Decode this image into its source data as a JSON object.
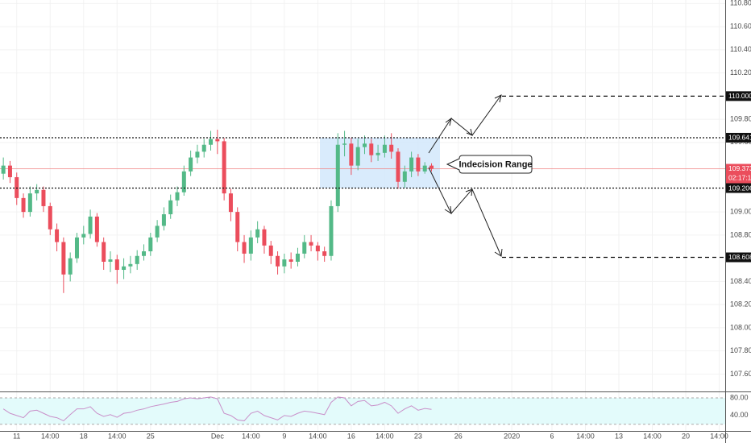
{
  "chart_data": {
    "type": "candlestick",
    "colors": {
      "up": "#53b987",
      "down": "#eb4d5c",
      "zone": "#cfe6fb",
      "last": "#f08080",
      "rsi": "#c98fc9",
      "rsi_band": "#e3fbfb"
    },
    "grid": true,
    "xlim": [
      -1.25,
      52.95
    ],
    "ylim": [
      107.45,
      110.83
    ],
    "x": [
      -1,
      -0.5,
      0,
      0.5,
      1,
      1.5,
      2,
      2.5,
      3,
      3.5,
      4,
      4.5,
      5,
      5.5,
      6,
      6.5,
      7,
      7.5,
      8,
      8.5,
      9,
      9.5,
      10,
      10.5,
      11,
      11.5,
      12,
      12.5,
      13,
      13.5,
      14,
      14.5,
      15,
      15.5,
      16,
      16.5,
      17,
      17.5,
      18,
      18.5,
      19,
      19.5,
      20,
      20.5,
      21,
      21.5,
      22,
      22.5,
      23,
      23.5,
      24,
      24.5,
      25,
      25.5,
      26,
      26.5,
      27,
      27.5,
      28,
      28.5,
      29,
      29.5,
      30,
      30.5,
      31
    ],
    "open": [
      109.33,
      109.4,
      109.3,
      109.12,
      109.0,
      109.16,
      109.19,
      109.05,
      108.85,
      108.74,
      108.46,
      108.6,
      108.78,
      108.81,
      108.96,
      108.74,
      108.57,
      108.59,
      108.5,
      108.53,
      108.55,
      108.62,
      108.66,
      108.78,
      108.88,
      108.98,
      109.1,
      109.17,
      109.35,
      109.47,
      109.52,
      109.58,
      109.63,
      109.61,
      109.16,
      109.0,
      108.74,
      108.64,
      108.78,
      108.85,
      108.71,
      108.62,
      108.53,
      108.59,
      108.57,
      108.64,
      108.74,
      108.71,
      108.66,
      108.62,
      109.05,
      109.58,
      109.59,
      109.4,
      109.56,
      109.59,
      109.49,
      109.51,
      109.58,
      109.52,
      109.26,
      109.35,
      109.47,
      109.35,
      109.4
    ],
    "high": [
      109.47,
      109.44,
      109.34,
      109.16,
      109.22,
      109.24,
      109.22,
      109.08,
      108.9,
      108.78,
      108.65,
      108.82,
      108.88,
      109.02,
      108.99,
      108.78,
      108.66,
      108.63,
      108.6,
      108.62,
      108.67,
      108.72,
      108.82,
      108.93,
      109.04,
      109.15,
      109.22,
      109.4,
      109.53,
      109.58,
      109.63,
      109.7,
      109.71,
      109.64,
      109.2,
      109.04,
      108.8,
      108.84,
      108.92,
      108.88,
      108.75,
      108.66,
      108.64,
      108.65,
      108.69,
      108.8,
      108.8,
      108.74,
      108.7,
      109.1,
      109.68,
      109.7,
      109.64,
      109.63,
      109.66,
      109.63,
      109.58,
      109.66,
      109.68,
      109.55,
      109.4,
      109.52,
      109.5,
      109.43,
      109.42
    ],
    "low": [
      109.28,
      109.25,
      109.06,
      108.95,
      108.96,
      109.1,
      109.0,
      108.8,
      108.66,
      108.3,
      108.4,
      108.56,
      108.72,
      108.77,
      108.7,
      108.5,
      108.48,
      108.38,
      108.42,
      108.47,
      108.5,
      108.58,
      108.62,
      108.74,
      108.84,
      108.94,
      109.05,
      109.14,
      109.31,
      109.42,
      109.47,
      109.53,
      109.5,
      109.1,
      108.92,
      108.66,
      108.56,
      108.58,
      108.73,
      108.64,
      108.55,
      108.46,
      108.47,
      108.51,
      108.53,
      108.6,
      108.66,
      108.58,
      108.57,
      108.58,
      109.0,
      109.48,
      109.32,
      109.36,
      109.5,
      109.43,
      109.44,
      109.47,
      109.46,
      109.2,
      109.21,
      109.3,
      109.31,
      109.33,
      109.35
    ],
    "close": [
      109.4,
      109.3,
      109.12,
      109.0,
      109.16,
      109.19,
      109.05,
      108.85,
      108.74,
      108.46,
      108.6,
      108.78,
      108.81,
      108.96,
      108.74,
      108.57,
      108.59,
      108.5,
      108.53,
      108.55,
      108.62,
      108.66,
      108.78,
      108.88,
      108.98,
      109.1,
      109.17,
      109.35,
      109.47,
      109.52,
      109.58,
      109.63,
      109.61,
      109.16,
      109.0,
      108.74,
      108.64,
      108.78,
      108.85,
      108.71,
      108.62,
      108.53,
      108.59,
      108.57,
      108.64,
      108.74,
      108.71,
      108.66,
      108.62,
      109.05,
      109.58,
      109.59,
      109.4,
      109.56,
      109.59,
      109.49,
      109.51,
      109.58,
      109.52,
      109.26,
      109.35,
      109.47,
      109.35,
      109.4,
      109.373
    ],
    "yticks": [
      {
        "value": 110.8,
        "label": "110.800"
      },
      {
        "value": 110.6,
        "label": "110.600"
      },
      {
        "value": 110.4,
        "label": "110.400"
      },
      {
        "value": 110.2,
        "label": "110.200"
      },
      {
        "value": 109.8,
        "label": "109.800"
      },
      {
        "value": 109.6,
        "label": "109.600"
      },
      {
        "value": 109.0,
        "label": "109.000"
      },
      {
        "value": 108.8,
        "label": "108.800"
      },
      {
        "value": 108.4,
        "label": "108.400"
      },
      {
        "value": 108.2,
        "label": "108.200"
      },
      {
        "value": 108.0,
        "label": "108.000"
      },
      {
        "value": 107.8,
        "label": "107.800"
      },
      {
        "value": 107.6,
        "label": "107.600"
      }
    ],
    "xticks": [
      {
        "value": 0,
        "label": "11"
      },
      {
        "value": 2.5,
        "label": "14:00"
      },
      {
        "value": 5,
        "label": "18"
      },
      {
        "value": 7.5,
        "label": "14:00"
      },
      {
        "value": 10,
        "label": "25"
      },
      {
        "value": 15,
        "label": "Dec"
      },
      {
        "value": 17.5,
        "label": "14:00"
      },
      {
        "value": 20,
        "label": "9"
      },
      {
        "value": 22.5,
        "label": "14:00"
      },
      {
        "value": 25,
        "label": "16"
      },
      {
        "value": 27.5,
        "label": "14:00"
      },
      {
        "value": 30,
        "label": "23"
      },
      {
        "value": 33,
        "label": "26"
      },
      {
        "value": 37,
        "label": "2020"
      },
      {
        "value": 40,
        "label": "6"
      },
      {
        "value": 42.5,
        "label": "14:00"
      },
      {
        "value": 45,
        "label": "13"
      },
      {
        "value": 47.5,
        "label": "14:00"
      },
      {
        "value": 50,
        "label": "20"
      },
      {
        "value": 52.5,
        "label": "14:00"
      }
    ],
    "levels": [
      {
        "value": 110.0,
        "label": "110.000",
        "style": "dashed"
      },
      {
        "value": 109.641,
        "label": "109.641",
        "style": "dotted"
      },
      {
        "value": 109.206,
        "label": "109.206",
        "style": "dotted"
      },
      {
        "value": 108.608,
        "label": "108.608",
        "style": "dashed"
      }
    ],
    "last_price": 109.373,
    "countdown": "02:17:16",
    "annotation": "Indecision Range",
    "rsi": {
      "ylim": [
        5,
        91
      ],
      "band": [
        20,
        80
      ],
      "yticks": [
        {
          "value": 80,
          "label": "80.00"
        },
        {
          "value": 40,
          "label": "40.00"
        }
      ],
      "values": [
        55,
        45,
        40,
        35,
        50,
        52,
        45,
        38,
        35,
        28,
        42,
        55,
        55,
        60,
        45,
        38,
        42,
        36,
        45,
        47,
        52,
        55,
        60,
        63,
        66,
        70,
        72,
        78,
        80,
        78,
        80,
        82,
        78,
        45,
        40,
        30,
        28,
        45,
        50,
        40,
        35,
        30,
        40,
        38,
        45,
        50,
        48,
        45,
        42,
        70,
        82,
        80,
        62,
        72,
        74,
        62,
        64,
        70,
        62,
        45,
        55,
        62,
        52,
        56,
        54
      ]
    }
  }
}
